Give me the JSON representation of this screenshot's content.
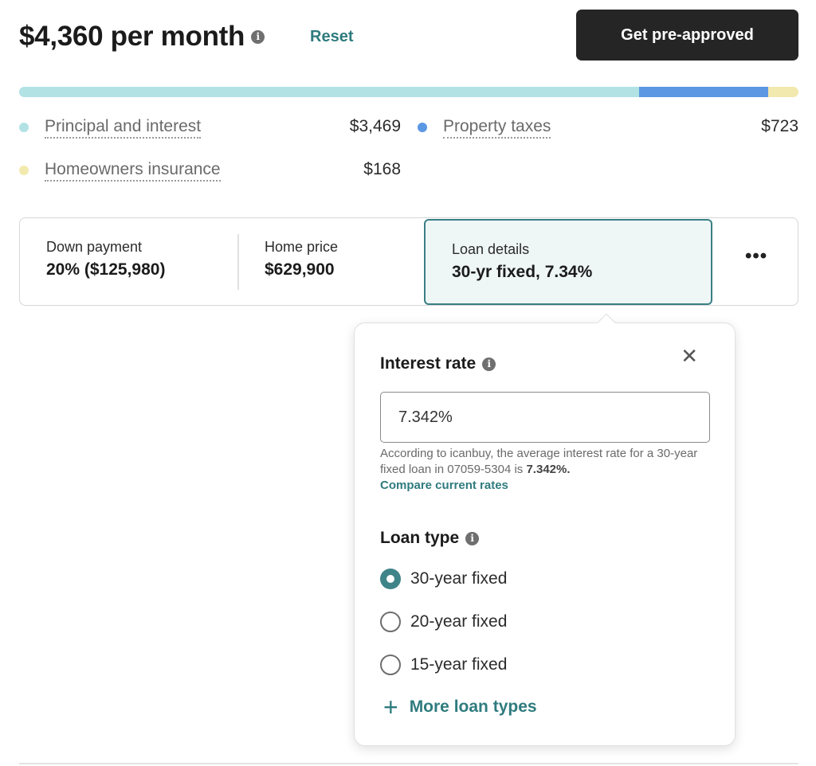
{
  "header": {
    "monthly_payment": "$4,360 per month",
    "info_icon": "i",
    "reset_label": "Reset",
    "preapproved_label": "Get pre-approved"
  },
  "breakdown": {
    "colors": {
      "principal": "#b3e2e5",
      "taxes": "#5b97e3",
      "insurance": "#f2e9ae"
    },
    "shares": [
      0.796,
      0.165,
      0.039
    ],
    "principal_label": "Principal and interest",
    "principal_value": "$3,469",
    "taxes_label": "Property taxes",
    "taxes_value": "$723",
    "insurance_label": "Homeowners insurance",
    "insurance_value": "$168"
  },
  "summary": {
    "down_payment_label": "Down payment",
    "down_payment_value": "20% ($125,980)",
    "home_price_label": "Home price",
    "home_price_value": "$629,900",
    "loan_details_label": "Loan details",
    "loan_details_value": "30-yr fixed, 7.34%",
    "more_label": "•••"
  },
  "popover": {
    "close_label": "✕",
    "interest_title": "Interest rate",
    "interest_value": "7.342%",
    "hint_text": "According to icanbuy, the average interest rate for a 30-year fixed loan in 07059-5304 is ",
    "hint_rate": "7.342%.",
    "compare_label": "Compare current rates",
    "loan_type_title": "Loan type",
    "options": [
      {
        "label": "30-year fixed",
        "selected": true
      },
      {
        "label": "20-year fixed",
        "selected": false
      },
      {
        "label": "15-year fixed",
        "selected": false
      }
    ],
    "more_types_label": "More loan types",
    "plus_label": "+"
  }
}
